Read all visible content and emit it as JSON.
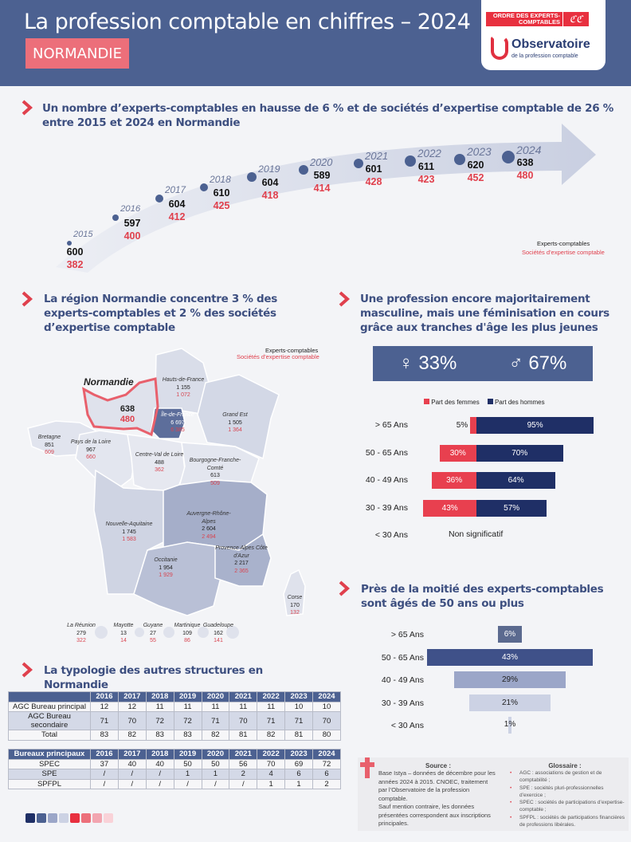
{
  "header": {
    "title": "La profession comptable en chiffres – 2024",
    "region": "NORMANDIE",
    "logo_oec": "ORDRE DES EXPERTS-COMPTABLES",
    "logo_obs": "Observatoire",
    "logo_obs_sub": "de la profession comptable"
  },
  "evolution": {
    "heading": "Un nombre d’experts-comptables en hausse de 6 % et de sociétés d’expertise comptable de 26 % entre 2015 et 2024 en Normandie",
    "points": [
      {
        "year": "2015",
        "experts": "600",
        "societes": "382"
      },
      {
        "year": "2016",
        "experts": "597",
        "societes": "400"
      },
      {
        "year": "2017",
        "experts": "604",
        "societes": "412"
      },
      {
        "year": "2018",
        "experts": "610",
        "societes": "425"
      },
      {
        "year": "2019",
        "experts": "604",
        "societes": "418"
      },
      {
        "year": "2020",
        "experts": "589",
        "societes": "414"
      },
      {
        "year": "2021",
        "experts": "601",
        "societes": "428"
      },
      {
        "year": "2022",
        "experts": "611",
        "societes": "423"
      },
      {
        "year": "2023",
        "experts": "620",
        "societes": "452"
      },
      {
        "year": "2024",
        "experts": "638",
        "societes": "480"
      }
    ],
    "legend_experts": "Experts-comptables",
    "legend_societes": "Sociétés d’expertise comptable"
  },
  "map": {
    "heading": "La région Normandie concentre 3 % des experts-comptables et 2 % des sociétés d’expertise comptable",
    "legend_experts": "Experts-comptables",
    "legend_societes": "Sociétés d’expertise comptable",
    "highlight_name": "Normandie",
    "highlight_experts": "638",
    "highlight_societes": "480",
    "regions": [
      {
        "name": "Hauts-de-France",
        "experts": "1 155",
        "societes": "1 072"
      },
      {
        "name": "Île-de-France",
        "experts": "6 697",
        "societes": "6 385"
      },
      {
        "name": "Grand Est",
        "experts": "1 505",
        "societes": "1 364"
      },
      {
        "name": "Bretagne",
        "experts": "851",
        "societes": "609"
      },
      {
        "name": "Pays de la Loire",
        "experts": "967",
        "societes": "660"
      },
      {
        "name": "Centre-Val de Loire",
        "experts": "488",
        "societes": "362"
      },
      {
        "name": "Bourgogne-Franche-Comté",
        "experts": "613",
        "societes": "509"
      },
      {
        "name": "Nouvelle-Aquitaine",
        "experts": "1 745",
        "societes": "1 583"
      },
      {
        "name": "Auvergne-Rhône-Alpes",
        "experts": "2 604",
        "societes": "2 494"
      },
      {
        "name": "Occitanie",
        "experts": "1 954",
        "societes": "1 929"
      },
      {
        "name": "Provence Alpes Côte d'Azur",
        "experts": "2 217",
        "societes": "2 365"
      },
      {
        "name": "Corse",
        "experts": "170",
        "societes": "132"
      },
      {
        "name": "La Réunion",
        "experts": "279",
        "societes": "322"
      },
      {
        "name": "Mayotte",
        "experts": "13",
        "societes": "14"
      },
      {
        "name": "Guyane",
        "experts": "27",
        "societes": "55"
      },
      {
        "name": "Martinique",
        "experts": "109",
        "societes": "86"
      },
      {
        "name": "Guadeloupe",
        "experts": "162",
        "societes": "141"
      }
    ]
  },
  "gender": {
    "heading": "Une profession encore majoritairement masculine, mais une féminisation en cours grâce aux tranches d'âge les plus jeunes",
    "female_pct": "33%",
    "male_pct": "67%",
    "legend_female": "Part des femmes",
    "legend_male": "Part des hommes",
    "colors": {
      "female": "#e8404f",
      "male": "#1f2f66"
    },
    "rows": [
      {
        "label": "> 65 Ans",
        "female": 5,
        "male": 95,
        "female_label": "5%",
        "male_label": "95%"
      },
      {
        "label": "50 - 65 Ans",
        "female": 30,
        "male": 70,
        "female_label": "30%",
        "male_label": "70%"
      },
      {
        "label": "40 - 49 Ans",
        "female": 36,
        "male": 64,
        "female_label": "36%",
        "male_label": "64%"
      },
      {
        "label": "30 - 39 Ans",
        "female": 43,
        "male": 57,
        "female_label": "43%",
        "male_label": "57%"
      },
      {
        "label": "< 30 Ans",
        "note": "Non significatif"
      }
    ]
  },
  "age": {
    "heading": "Près de la moitié des experts-comptables sont âgés de 50 ans ou plus",
    "rows": [
      {
        "label": "> 65 Ans",
        "value": 6,
        "value_label": "6%",
        "color": "#5b6a8f"
      },
      {
        "label": "50 - 65 Ans",
        "value": 43,
        "value_label": "43%",
        "color": "#3f5189"
      },
      {
        "label": "40 - 49 Ans",
        "value": 29,
        "value_label": "29%",
        "color": "#9ba6c8"
      },
      {
        "label": "30 - 39 Ans",
        "value": 21,
        "value_label": "21%",
        "color": "#ccd2e4"
      },
      {
        "label": "< 30 Ans",
        "value": 1,
        "value_label": "1%",
        "color": "#ccd2e4"
      }
    ]
  },
  "structures": {
    "heading": "La typologie des autres structures en Normandie",
    "table1": {
      "columns": [
        "",
        "2016",
        "2017",
        "2018",
        "2019",
        "2020",
        "2021",
        "2022",
        "2023",
        "2024"
      ],
      "rows": [
        [
          "AGC Bureau principal",
          "12",
          "12",
          "11",
          "11",
          "11",
          "11",
          "11",
          "10",
          "10"
        ],
        [
          "AGC Bureau secondaire",
          "71",
          "70",
          "72",
          "72",
          "71",
          "70",
          "71",
          "71",
          "70"
        ],
        [
          "Total",
          "83",
          "82",
          "83",
          "83",
          "82",
          "81",
          "82",
          "81",
          "80"
        ]
      ]
    },
    "table2": {
      "columns": [
        "Bureaux principaux",
        "2016",
        "2017",
        "2018",
        "2019",
        "2020",
        "2021",
        "2022",
        "2023",
        "2024"
      ],
      "rows": [
        [
          "SPEC",
          "37",
          "40",
          "40",
          "50",
          "50",
          "56",
          "70",
          "69",
          "72"
        ],
        [
          "SPE",
          "/",
          "/",
          "/",
          "1",
          "1",
          "2",
          "4",
          "6",
          "6"
        ],
        [
          "SPFPL",
          "/",
          "/",
          "/",
          "/",
          "/",
          "/",
          "1",
          "1",
          "2"
        ]
      ]
    }
  },
  "palette": [
    "#1f2f66",
    "#4c6191",
    "#9ba6c8",
    "#ccd2e4",
    "#e8303f",
    "#ec6f7a",
    "#f2a5b0",
    "#f9d2d8"
  ],
  "source": {
    "title": "Source :",
    "text1": "Base Istya – données de décembre pour les années 2024 à 2015. CNOEC, traitement par l’Observatoire de la profession comptable.",
    "text2": "Sauf mention contraire, les données présentées correspondent aux inscriptions principales."
  },
  "glossary": {
    "title": "Glossaire :",
    "items": [
      "AGC : associations de gestion et de comptabilité ;",
      "SPE : sociétés pluri-professionnelles d’exercice ;",
      "SPEC : sociétés de participations d’expertise-comptable ;",
      "SPFPL : sociétés de participations financières de professions libérales."
    ]
  }
}
